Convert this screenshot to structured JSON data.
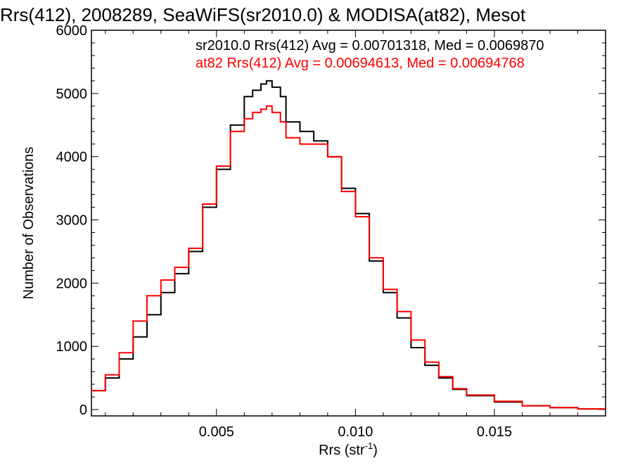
{
  "chart_data": {
    "type": "line",
    "title": "Rrs(412), 2008289, SeaWiFS(sr2010.0) & MODISA(at82), Mesot",
    "xlabel": "Rrs (str",
    "xlabel_sup": "-1",
    "xlabel_close": ")",
    "ylabel": "Number of Observations",
    "xlim": [
      0.0005,
      0.019
    ],
    "ylim": [
      -100,
      6000
    ],
    "xticks": [
      0.005,
      0.01,
      0.015
    ],
    "xtick_labels": [
      "0.005",
      "0.010",
      "0.015"
    ],
    "yticks": [
      0,
      1000,
      2000,
      3000,
      4000,
      5000,
      6000
    ],
    "ytick_labels": [
      "0",
      "1000",
      "2000",
      "3000",
      "4000",
      "5000",
      "6000"
    ],
    "grid": false,
    "annotations": [
      "sr2010.0 Rrs(412) Avg = 0.00701318, Med = 0.0069870",
      "at82 Rrs(412) Avg = 0.00694613, Med = 0.00694768"
    ],
    "series": [
      {
        "color": "#000000",
        "x": [
          0.0005,
          0.001,
          0.0015,
          0.002,
          0.0025,
          0.003,
          0.0035,
          0.004,
          0.0045,
          0.005,
          0.0055,
          0.006,
          0.0063,
          0.0066,
          0.0068,
          0.007,
          0.0073,
          0.0075,
          0.008,
          0.0085,
          0.009,
          0.0095,
          0.01,
          0.0105,
          0.011,
          0.0115,
          0.012,
          0.0125,
          0.013,
          0.0135,
          0.014,
          0.015,
          0.016,
          0.017,
          0.018,
          0.019
        ],
        "values": [
          300,
          500,
          800,
          1150,
          1500,
          1850,
          2150,
          2500,
          3200,
          3800,
          4500,
          4950,
          5050,
          5150,
          5200,
          5100,
          4950,
          4550,
          4400,
          4250,
          4000,
          3500,
          3100,
          2350,
          1850,
          1450,
          980,
          700,
          500,
          320,
          220,
          120,
          60,
          30,
          10,
          5
        ]
      },
      {
        "color": "#ff0000",
        "x": [
          0.0005,
          0.001,
          0.0015,
          0.002,
          0.0025,
          0.003,
          0.0035,
          0.004,
          0.0045,
          0.005,
          0.0055,
          0.006,
          0.0063,
          0.0066,
          0.0068,
          0.007,
          0.0073,
          0.0075,
          0.008,
          0.0085,
          0.009,
          0.0095,
          0.01,
          0.0105,
          0.011,
          0.0115,
          0.012,
          0.0125,
          0.013,
          0.0135,
          0.014,
          0.015,
          0.016,
          0.017,
          0.018,
          0.019
        ],
        "values": [
          300,
          550,
          900,
          1400,
          1800,
          2050,
          2250,
          2550,
          3250,
          3850,
          4400,
          4600,
          4700,
          4750,
          4800,
          4700,
          4550,
          4300,
          4200,
          4200,
          4000,
          3450,
          3050,
          2400,
          1900,
          1550,
          1100,
          750,
          520,
          330,
          230,
          130,
          60,
          30,
          10,
          5
        ]
      }
    ]
  }
}
